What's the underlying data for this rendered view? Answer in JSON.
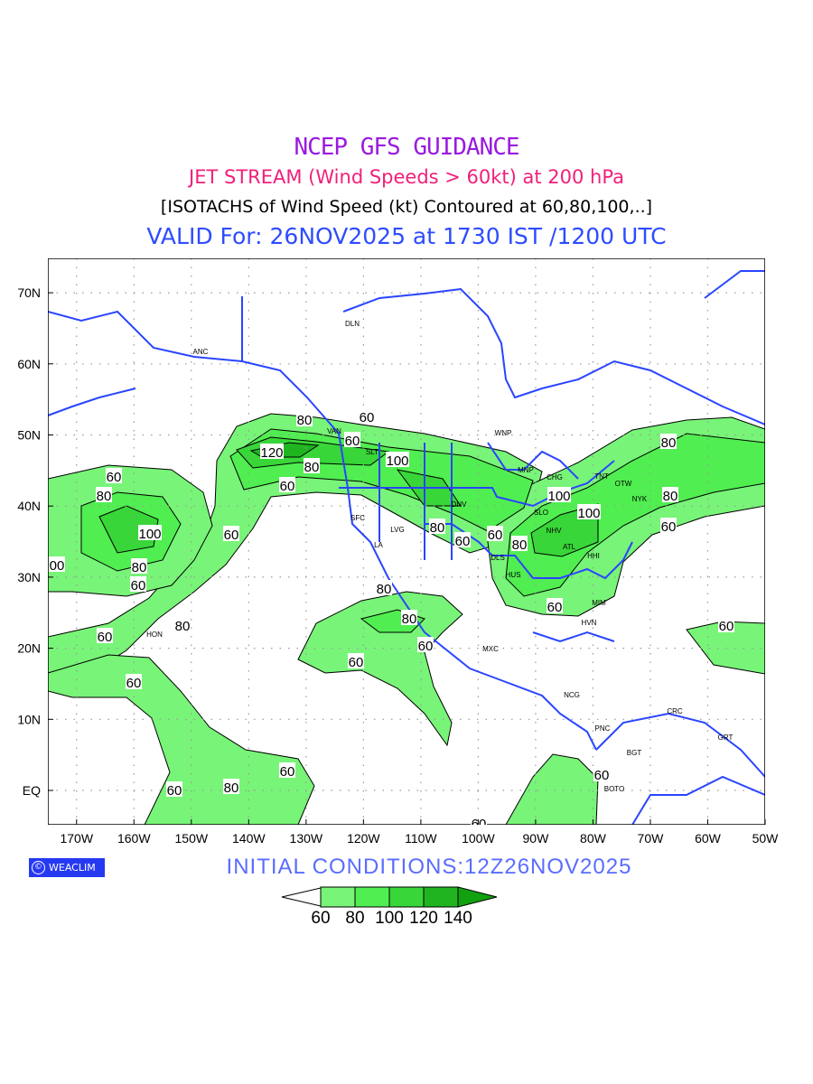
{
  "titles": {
    "line1": "NCEP GFS GUIDANCE",
    "line2": "JET STREAM (Wind Speeds > 60kt) at 200 hPa",
    "line3": "[ISOTACHS of Wind Speed (kt) Contoured at 60,80,100,..]",
    "line4": "VALID For: 26NOV2025 at 1730 IST /1200 UTC"
  },
  "axes": {
    "lon_labels": [
      "170W",
      "160W",
      "150W",
      "140W",
      "130W",
      "120W",
      "110W",
      "100W",
      "90W",
      "80W",
      "70W",
      "60W",
      "50W"
    ],
    "lat_labels": [
      "EQ",
      "10N",
      "20N",
      "30N",
      "40N",
      "50N",
      "60N",
      "70N"
    ]
  },
  "contour_labels": [
    "60",
    "80",
    "100",
    "80",
    "60",
    "120",
    "80",
    "60",
    "100",
    "80",
    "60",
    "100",
    "80",
    "60",
    "80",
    "60",
    "80",
    "60",
    "80",
    "100",
    "60",
    "80",
    "60",
    "80",
    "60",
    "80",
    "60",
    "60",
    "60",
    "00",
    "60",
    "60",
    "80",
    "60",
    "60",
    "60",
    "60"
  ],
  "stations": [
    "ANC",
    "DLN",
    "WNP",
    "MNP",
    "CHG",
    "TNT",
    "OTW",
    "NYK",
    "SLO",
    "NHV",
    "ATL",
    "HHI",
    "DLS",
    "HUS",
    "DNV",
    "LVG",
    "SFC",
    "LA",
    "SLT",
    "VAN",
    "MIM",
    "HVN",
    "MXC",
    "NCG",
    "PNC",
    "BGT",
    "CRC",
    "GRT",
    "HON",
    "BOTO"
  ],
  "legend": {
    "labels": [
      "60",
      "80",
      "100",
      "120",
      "140"
    ],
    "colors": [
      "#ffffff",
      "#78f478",
      "#50ee50",
      "#38d638",
      "#20b420",
      "#10a010"
    ]
  },
  "footer": {
    "credit": "WEACLIM",
    "credit_symbol": "©",
    "initial": "INITIAL  CONDITIONS:12Z26NOV2025"
  },
  "colors": {
    "coast": "#2a45ff",
    "grid": "#999999"
  }
}
